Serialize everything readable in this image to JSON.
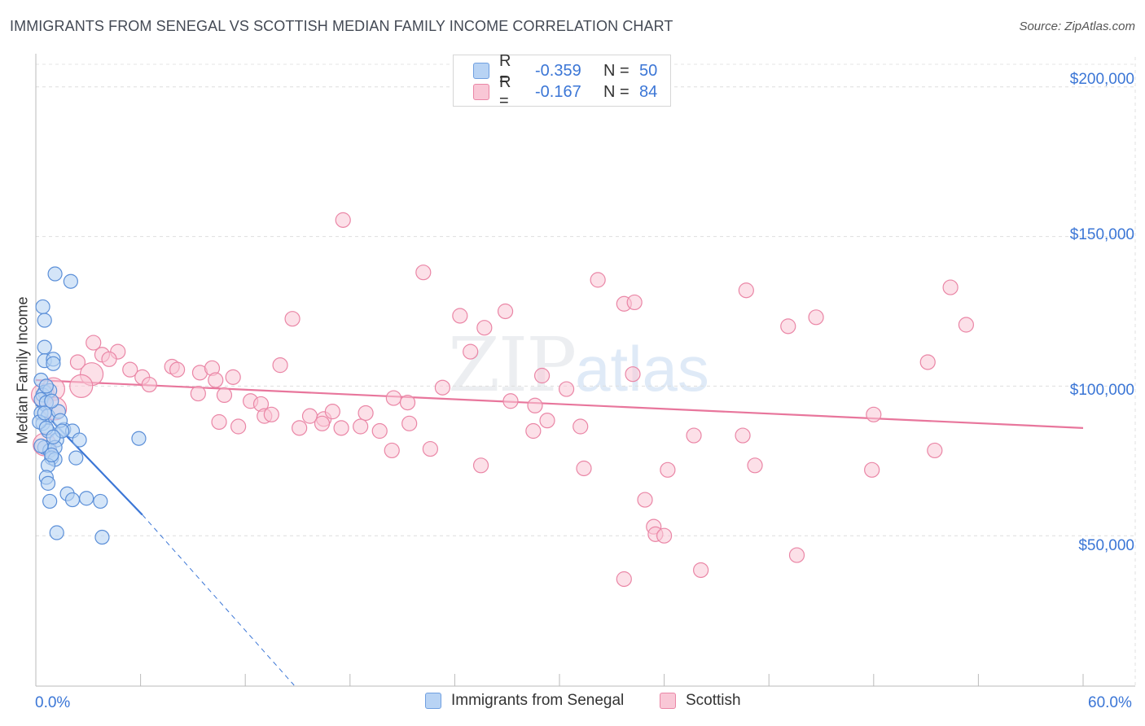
{
  "title": "IMMIGRANTS FROM SENEGAL VS SCOTTISH MEDIAN FAMILY INCOME CORRELATION CHART",
  "source": "Source: ZipAtlas.com",
  "watermark": {
    "zip": "ZIP",
    "atlas": "atlas"
  },
  "legend_top": {
    "rows": [
      {
        "label": "R =",
        "r": "-0.359",
        "n_label": "N =",
        "n": "50"
      },
      {
        "label": "R =",
        "r": "-0.167",
        "n_label": "N =",
        "n": "84"
      }
    ]
  },
  "colors": {
    "blue": "#3b76d6",
    "blue_fill": "#b8d3f4",
    "pink": "#e8769c",
    "pink_fill": "#f9c7d6",
    "grid": "#dcdcdc"
  },
  "chart_data": {
    "type": "scatter",
    "title": "IMMIGRANTS FROM SENEGAL VS SCOTTISH MEDIAN FAMILY INCOME CORRELATION CHART",
    "xlabel": "",
    "ylabel": "Median Family Income",
    "xlim": [
      0,
      60
    ],
    "ylim": [
      0,
      210000
    ],
    "x_tick_labels": [
      "0.0%",
      "60.0%"
    ],
    "y_ticks": [
      50000,
      100000,
      150000,
      200000
    ],
    "y_tick_labels": [
      "$50,000",
      "$100,000",
      "$150,000",
      "$200,000"
    ],
    "grid": true,
    "legend": [
      "Immigrants from Senegal",
      "Scottish"
    ],
    "series": [
      {
        "name": "Immigrants from Senegal",
        "color": "#3b76d6",
        "r": -0.359,
        "n": 50,
        "trend": {
          "x0": 0,
          "y0": 94000,
          "x1": 6.1,
          "y1": 57000,
          "dash_x1": 14.8,
          "dash_y1": 0
        },
        "points": [
          [
            0.4,
            126500
          ],
          [
            0.5,
            122000
          ],
          [
            1.1,
            137500
          ],
          [
            2.0,
            135000
          ],
          [
            0.5,
            113000
          ],
          [
            0.5,
            108500
          ],
          [
            1.0,
            109000
          ],
          [
            1.0,
            107500
          ],
          [
            0.3,
            102000
          ],
          [
            0.5,
            98000
          ],
          [
            0.4,
            97000
          ],
          [
            0.8,
            98500
          ],
          [
            0.3,
            95500
          ],
          [
            0.6,
            94500
          ],
          [
            0.3,
            91000
          ],
          [
            0.7,
            90000
          ],
          [
            1.3,
            91500
          ],
          [
            0.4,
            87500
          ],
          [
            0.7,
            85000
          ],
          [
            1.6,
            85500
          ],
          [
            2.1,
            85000
          ],
          [
            1.2,
            82000
          ],
          [
            2.5,
            82000
          ],
          [
            5.9,
            82500
          ],
          [
            0.5,
            79500
          ],
          [
            0.8,
            78500
          ],
          [
            1.1,
            79500
          ],
          [
            0.9,
            76000
          ],
          [
            1.1,
            75500
          ],
          [
            2.3,
            76000
          ],
          [
            0.7,
            73500
          ],
          [
            0.6,
            69500
          ],
          [
            0.7,
            67500
          ],
          [
            1.8,
            64000
          ],
          [
            2.1,
            62000
          ],
          [
            2.9,
            62500
          ],
          [
            3.7,
            61500
          ],
          [
            0.8,
            61500
          ],
          [
            1.2,
            51000
          ],
          [
            3.8,
            49500
          ],
          [
            0.2,
            88000
          ],
          [
            0.5,
            91000
          ],
          [
            0.6,
            86000
          ],
          [
            0.9,
            95000
          ],
          [
            1.4,
            88500
          ],
          [
            0.3,
            80000
          ],
          [
            0.9,
            77000
          ],
          [
            1.5,
            85000
          ],
          [
            0.6,
            100000
          ],
          [
            1.0,
            83000
          ]
        ]
      },
      {
        "name": "Scottish",
        "color": "#e8769c",
        "r": -0.167,
        "n": 84,
        "trend": {
          "x0": 0,
          "y0": 102000,
          "x1": 60,
          "y1": 86000
        },
        "points": [
          [
            17.6,
            155500
          ],
          [
            22.2,
            138000
          ],
          [
            32.2,
            135500
          ],
          [
            33.7,
            127500
          ],
          [
            34.3,
            128000
          ],
          [
            40.7,
            132000
          ],
          [
            52.4,
            133000
          ],
          [
            14.7,
            122500
          ],
          [
            24.3,
            123500
          ],
          [
            26.9,
            125000
          ],
          [
            25.7,
            119500
          ],
          [
            43.1,
            120000
          ],
          [
            44.7,
            123000
          ],
          [
            53.3,
            120500
          ],
          [
            24.9,
            111500
          ],
          [
            3.3,
            114500
          ],
          [
            3.8,
            110500
          ],
          [
            4.7,
            111500
          ],
          [
            2.4,
            108000
          ],
          [
            4.2,
            109000
          ],
          [
            14.0,
            107000
          ],
          [
            7.8,
            106500
          ],
          [
            8.1,
            105500
          ],
          [
            5.4,
            105500
          ],
          [
            9.4,
            104500
          ],
          [
            10.1,
            106000
          ],
          [
            6.1,
            103000
          ],
          [
            10.3,
            102000
          ],
          [
            11.3,
            103000
          ],
          [
            29.0,
            103500
          ],
          [
            34.2,
            104000
          ],
          [
            51.1,
            108000
          ],
          [
            6.5,
            100500
          ],
          [
            23.3,
            99500
          ],
          [
            30.4,
            99000
          ],
          [
            9.3,
            97500
          ],
          [
            10.8,
            97000
          ],
          [
            12.3,
            95000
          ],
          [
            12.9,
            94000
          ],
          [
            20.5,
            96000
          ],
          [
            27.2,
            95000
          ],
          [
            28.6,
            93500
          ],
          [
            21.3,
            94500
          ],
          [
            13.1,
            90000
          ],
          [
            13.5,
            90500
          ],
          [
            15.7,
            90000
          ],
          [
            16.5,
            89000
          ],
          [
            17.0,
            91500
          ],
          [
            18.9,
            91000
          ],
          [
            10.5,
            88000
          ],
          [
            11.6,
            86500
          ],
          [
            15.1,
            86000
          ],
          [
            16.4,
            87500
          ],
          [
            17.5,
            86000
          ],
          [
            18.6,
            86500
          ],
          [
            19.7,
            85000
          ],
          [
            21.4,
            87500
          ],
          [
            28.5,
            85000
          ],
          [
            29.3,
            88500
          ],
          [
            31.2,
            86500
          ],
          [
            37.7,
            83500
          ],
          [
            40.5,
            83500
          ],
          [
            48.0,
            90500
          ],
          [
            20.4,
            78500
          ],
          [
            22.6,
            79000
          ],
          [
            25.5,
            73500
          ],
          [
            31.4,
            72500
          ],
          [
            36.2,
            72000
          ],
          [
            41.2,
            73500
          ],
          [
            47.9,
            72000
          ],
          [
            51.5,
            78500
          ],
          [
            34.9,
            62000
          ],
          [
            35.4,
            53000
          ],
          [
            35.5,
            50500
          ],
          [
            36.0,
            50000
          ],
          [
            38.1,
            38500
          ],
          [
            43.6,
            43500
          ],
          [
            33.7,
            35500
          ],
          [
            0.4,
            97000
          ],
          [
            1.0,
            99000
          ],
          [
            1.1,
            92500
          ],
          [
            0.5,
            80500
          ],
          [
            3.2,
            104000
          ],
          [
            2.6,
            100000
          ]
        ]
      }
    ]
  }
}
